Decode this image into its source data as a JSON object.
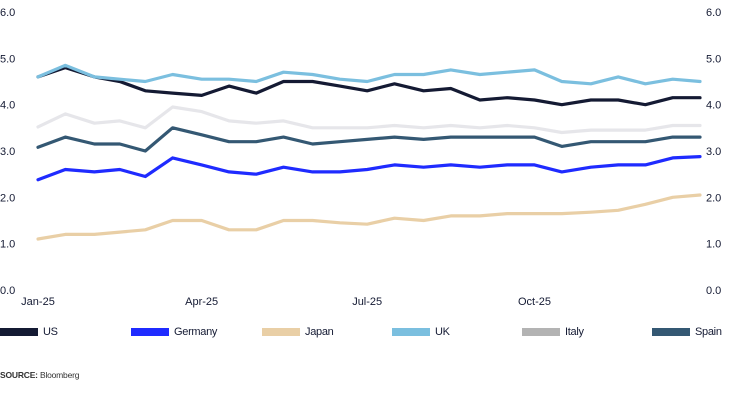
{
  "chart_data": {
    "type": "line",
    "title": "",
    "xlabel": "",
    "ylabel": "",
    "ylim": [
      0.0,
      6.0
    ],
    "yticks": [
      "0.0",
      "1.0",
      "2.0",
      "3.0",
      "4.0",
      "5.0",
      "6.0"
    ],
    "y_axes": "left and right (mirrored)",
    "xticks": [
      {
        "date": "2025-01-01",
        "label": "Jan-25"
      },
      {
        "date": "2025-04-01",
        "label": "Apr-25"
      },
      {
        "date": "2025-07-01",
        "label": "Jul-25"
      },
      {
        "date": "2025-10-01",
        "label": "Oct-25"
      }
    ],
    "grid": false,
    "legend_placement": "bottom",
    "x": [
      "2025-01-01",
      "2025-01-16",
      "2025-02-01",
      "2025-02-15",
      "2025-03-01",
      "2025-03-16",
      "2025-04-01",
      "2025-04-16",
      "2025-05-01",
      "2025-05-16",
      "2025-06-01",
      "2025-06-16",
      "2025-07-01",
      "2025-07-16",
      "2025-08-01",
      "2025-08-16",
      "2025-09-01",
      "2025-09-16",
      "2025-10-01",
      "2025-10-16",
      "2025-11-01",
      "2025-11-16",
      "2025-12-01",
      "2025-12-16",
      "2025-12-31"
    ],
    "series": [
      {
        "name": "US",
        "color": "#141a33",
        "values": [
          4.6,
          4.8,
          4.6,
          4.5,
          4.3,
          4.25,
          4.2,
          4.4,
          4.25,
          4.5,
          4.5,
          4.4,
          4.3,
          4.45,
          4.3,
          4.35,
          4.1,
          4.15,
          4.1,
          4.0,
          4.1,
          4.1,
          4.0,
          4.15,
          4.15
        ]
      },
      {
        "name": "Germany",
        "color": "#1f2bff",
        "values": [
          2.38,
          2.6,
          2.55,
          2.6,
          2.45,
          2.85,
          2.7,
          2.55,
          2.5,
          2.65,
          2.55,
          2.55,
          2.6,
          2.7,
          2.65,
          2.7,
          2.65,
          2.7,
          2.7,
          2.55,
          2.65,
          2.7,
          2.7,
          2.85,
          2.88
        ]
      },
      {
        "name": "Japan",
        "color": "#e9cfa6",
        "values": [
          1.1,
          1.2,
          1.2,
          1.25,
          1.3,
          1.5,
          1.5,
          1.3,
          1.3,
          1.5,
          1.5,
          1.45,
          1.42,
          1.55,
          1.5,
          1.6,
          1.6,
          1.65,
          1.65,
          1.65,
          1.68,
          1.72,
          1.85,
          2.0,
          2.05
        ]
      },
      {
        "name": "UK",
        "color": "#7bbfdf",
        "values": [
          4.6,
          4.85,
          4.6,
          4.55,
          4.5,
          4.65,
          4.55,
          4.55,
          4.5,
          4.7,
          4.65,
          4.55,
          4.5,
          4.65,
          4.65,
          4.75,
          4.65,
          4.7,
          4.75,
          4.5,
          4.45,
          4.6,
          4.45,
          4.55,
          4.5
        ]
      },
      {
        "name": "Italy",
        "color": "#b3b3b3",
        "line_color": "#e6e6ea",
        "values": [
          3.52,
          3.8,
          3.6,
          3.65,
          3.5,
          3.95,
          3.85,
          3.65,
          3.6,
          3.65,
          3.5,
          3.5,
          3.5,
          3.55,
          3.5,
          3.55,
          3.5,
          3.55,
          3.5,
          3.4,
          3.45,
          3.45,
          3.45,
          3.55,
          3.55
        ]
      },
      {
        "name": "Spain",
        "color": "#345873",
        "values": [
          3.08,
          3.3,
          3.15,
          3.15,
          3.0,
          3.5,
          3.35,
          3.2,
          3.2,
          3.3,
          3.15,
          3.2,
          3.25,
          3.3,
          3.25,
          3.3,
          3.3,
          3.3,
          3.3,
          3.1,
          3.2,
          3.2,
          3.2,
          3.3,
          3.3
        ]
      }
    ]
  },
  "source": {
    "label": "SOURCE:",
    "text": "Bloomberg"
  }
}
